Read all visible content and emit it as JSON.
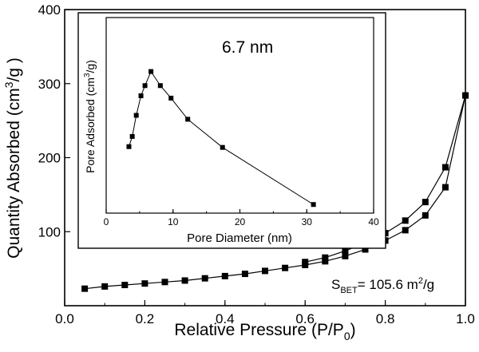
{
  "chart_data": [
    {
      "type": "line",
      "xlabel": "Relative Pressure (P/P",
      "xlabel_sub": "0",
      "xlabel_end": ")",
      "ylabel": "Quantity Absorbed (cm",
      "ylabel_sup": "3",
      "ylabel_end": "/g )",
      "xlim": [
        0.0,
        1.0
      ],
      "ylim": [
        0,
        400
      ],
      "xticks": [
        0.0,
        0.2,
        0.4,
        0.6,
        0.8,
        1.0
      ],
      "xtick_labels": [
        "0.0",
        "0.2",
        "0.4",
        "0.6",
        "0.8",
        "1.0"
      ],
      "yticks": [
        100,
        200,
        300,
        400
      ],
      "ytick_labels": [
        "100",
        "200",
        "300",
        "400"
      ],
      "grid": false,
      "annotation": {
        "prefix": "S",
        "sub": "BET",
        "value": "= 105.6 m",
        "sup": "2",
        "suffix": "/g"
      },
      "series": [
        {
          "marker": "square",
          "x": [
            0.05,
            0.1,
            0.15,
            0.2,
            0.25,
            0.3,
            0.35,
            0.4,
            0.45,
            0.5,
            0.55,
            0.6,
            0.65,
            0.7,
            0.75,
            0.8,
            0.85,
            0.9,
            0.95,
            1.0
          ],
          "y": [
            23,
            26,
            28,
            30,
            32,
            34,
            37,
            40,
            43,
            47,
            51,
            55,
            60,
            67,
            76,
            88,
            102,
            122,
            160,
            284
          ]
        },
        {
          "marker": "square",
          "x": [
            0.6,
            0.65,
            0.7,
            0.75,
            0.8,
            0.85,
            0.9,
            0.95,
            1.0
          ],
          "y": [
            59,
            65,
            74,
            85,
            98,
            115,
            140,
            187,
            284
          ]
        }
      ]
    },
    {
      "type": "line",
      "xlabel": "Pore Diameter (nm)",
      "ylabel": "Pore Adsorbed (cm",
      "ylabel_sup": "3",
      "ylabel_end": "/g)",
      "xlim": [
        0,
        40
      ],
      "ylim": [
        120,
        370
      ],
      "xticks": [
        0,
        10,
        20,
        30,
        40
      ],
      "xtick_labels": [
        "0",
        "10",
        "20",
        "30",
        "40"
      ],
      "grid": false,
      "annotation": "6.7 nm",
      "series": [
        {
          "marker": "square",
          "x": [
            3.4,
            3.9,
            4.5,
            5.2,
            5.8,
            6.7,
            8.1,
            9.7,
            12.2,
            17.4,
            31.0
          ],
          "y": [
            205,
            218,
            245,
            270,
            283,
            301,
            283,
            267,
            240,
            204,
            131
          ]
        }
      ]
    }
  ]
}
